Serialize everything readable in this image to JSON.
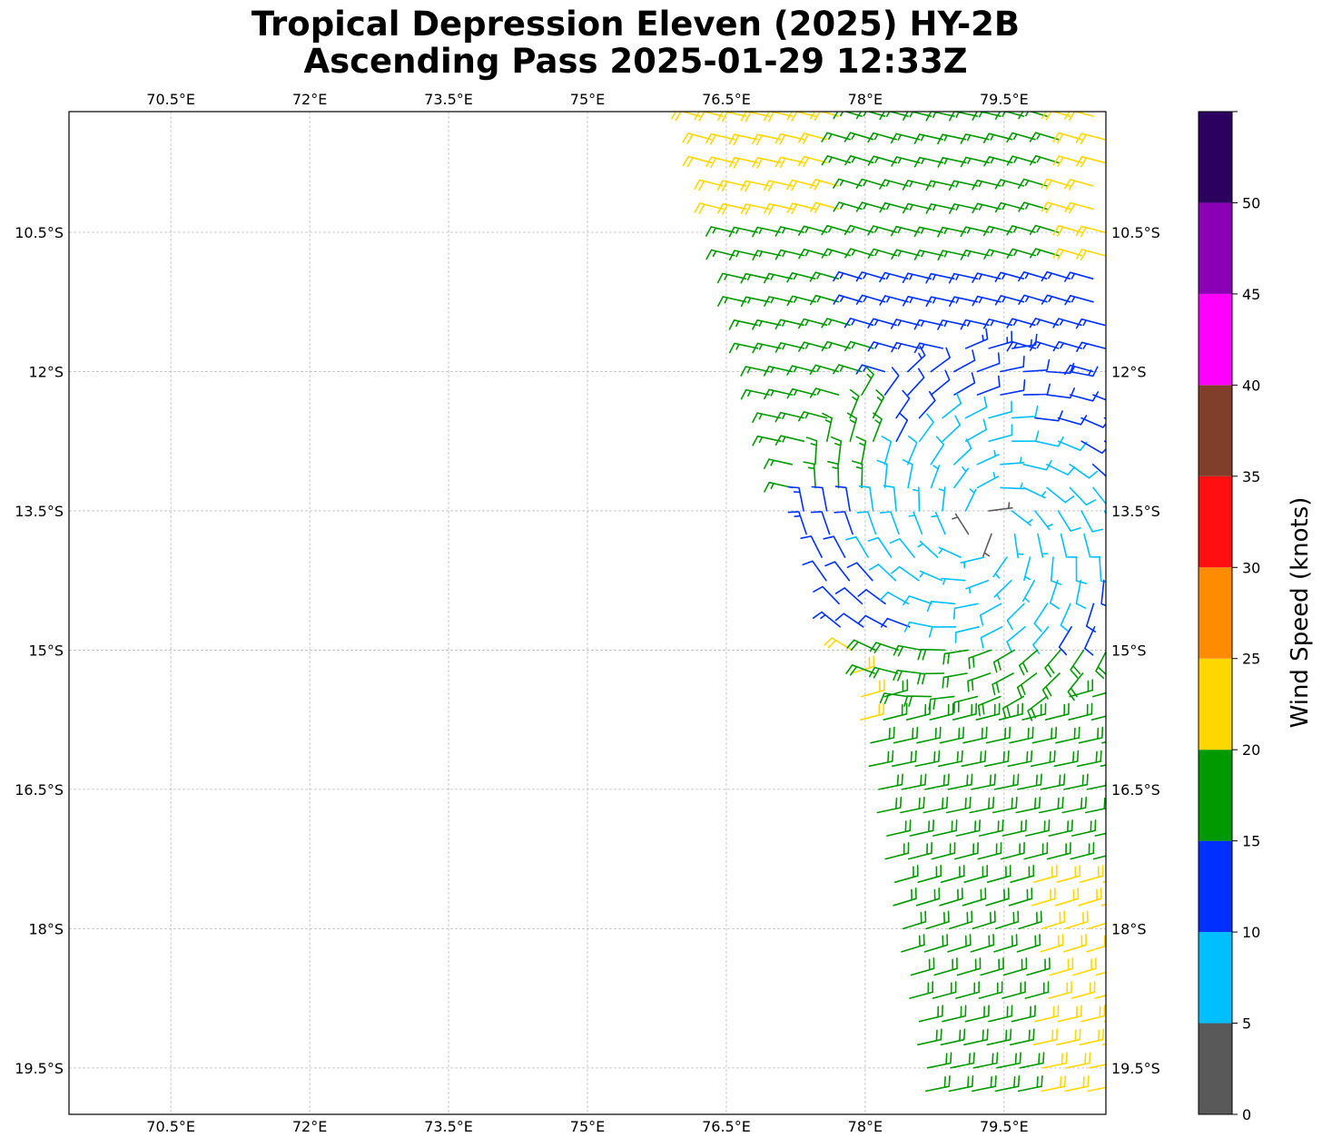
{
  "title": {
    "line1": "Tropical Depression Eleven (2025) HY-2B",
    "line2": "Ascending Pass 2025-01-29 12:33Z"
  },
  "map": {
    "lon_range": [
      69.4,
      80.6
    ],
    "lat_range": [
      -20.0,
      -9.2
    ],
    "gridlines": true,
    "lon_ticks": [
      {
        "value": 70.5,
        "label": "70.5°E"
      },
      {
        "value": 72.0,
        "label": "72°E"
      },
      {
        "value": 73.5,
        "label": "73.5°E"
      },
      {
        "value": 75.0,
        "label": "75°E"
      },
      {
        "value": 76.5,
        "label": "76.5°E"
      },
      {
        "value": 78.0,
        "label": "78°E"
      },
      {
        "value": 79.5,
        "label": "79.5°E"
      }
    ],
    "lat_ticks": [
      {
        "value": -10.5,
        "label": "10.5°S"
      },
      {
        "value": -12.0,
        "label": "12°S"
      },
      {
        "value": -13.5,
        "label": "13.5°S"
      },
      {
        "value": -15.0,
        "label": "15°S"
      },
      {
        "value": -16.5,
        "label": "16.5°S"
      },
      {
        "value": -18.0,
        "label": "18°S"
      },
      {
        "value": -19.5,
        "label": "19.5°S"
      }
    ],
    "wind_barbs": {
      "description_units": "knots",
      "swath_west_edge": [
        [
          -9.2,
          76.2
        ],
        [
          -13.6,
          77.3
        ],
        [
          -14.3,
          77.6
        ],
        [
          -15.0,
          77.8
        ],
        [
          -16.0,
          78.0
        ],
        [
          -20.0,
          78.7
        ]
      ],
      "swath_east_edge_lon": 80.6,
      "center": {
        "lat": -13.7,
        "lon": 79.3
      },
      "spacing_deg": 0.25
    }
  },
  "colorbar": {
    "label": "Wind Speed (knots)",
    "bins": [
      {
        "from": 0,
        "to": 5,
        "color": "#595959"
      },
      {
        "from": 5,
        "to": 10,
        "color": "#00bfff"
      },
      {
        "from": 10,
        "to": 15,
        "color": "#0030ff"
      },
      {
        "from": 15,
        "to": 20,
        "color": "#009900"
      },
      {
        "from": 20,
        "to": 25,
        "color": "#ffd700"
      },
      {
        "from": 25,
        "to": 30,
        "color": "#ff8c00"
      },
      {
        "from": 30,
        "to": 35,
        "color": "#ff0f0f"
      },
      {
        "from": 35,
        "to": 40,
        "color": "#803f2a"
      },
      {
        "from": 40,
        "to": 45,
        "color": "#ff00ff"
      },
      {
        "from": 45,
        "to": 50,
        "color": "#8b00b5"
      },
      {
        "from": 50,
        "to": 55,
        "color": "#2c005e"
      }
    ],
    "tick_labels": [
      "0",
      "5",
      "10",
      "15",
      "20",
      "25",
      "30",
      "35",
      "40",
      "45",
      "50"
    ]
  }
}
